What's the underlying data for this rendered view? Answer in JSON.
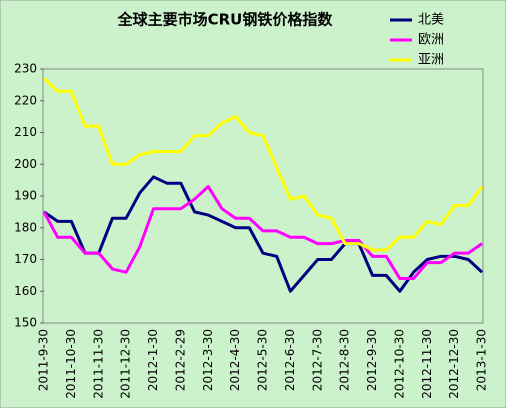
{
  "chart_data": {
    "type": "line",
    "title": "全球主要市场CRU钢铁价格指数",
    "categories": [
      "2011-9-30",
      null,
      "2011-10-30",
      null,
      "2011-11-30",
      null,
      "2011-12-30",
      null,
      "2012-1-30",
      null,
      "2012-2-29",
      null,
      "2012-3-30",
      null,
      "2012-4-30",
      null,
      "2012-5-30",
      null,
      "2012-6-30",
      null,
      "2012-7-30",
      null,
      "2012-8-30",
      null,
      "2012-9-30",
      null,
      "2012-10-30",
      null,
      "2012-11-30",
      null,
      "2012-12-30",
      null,
      "2013-1-30"
    ],
    "series": [
      {
        "name": "北美",
        "color": "#000080",
        "values": [
          185,
          182,
          182,
          172,
          172,
          183,
          183,
          191,
          196,
          194,
          194,
          185,
          184,
          182,
          180,
          180,
          172,
          171,
          160,
          165,
          170,
          170,
          175,
          175,
          165,
          165,
          160,
          166,
          170,
          171,
          171,
          170,
          166
        ]
      },
      {
        "name": "欧洲",
        "color": "#ff00ff",
        "values": [
          185,
          177,
          177,
          172,
          172,
          167,
          166,
          174,
          186,
          186,
          186,
          189,
          193,
          186,
          183,
          183,
          179,
          179,
          177,
          177,
          175,
          175,
          176,
          176,
          171,
          171,
          164,
          164,
          169,
          169,
          172,
          172,
          175
        ]
      },
      {
        "name": "亚洲",
        "color": "#ffff00",
        "values": [
          227,
          223,
          223,
          212,
          212,
          200,
          200,
          203,
          204,
          204,
          204,
          209,
          209,
          213,
          215,
          210,
          209,
          199,
          189,
          190,
          184,
          183,
          175,
          175,
          173,
          173,
          177,
          177,
          182,
          181,
          187,
          187,
          193
        ]
      }
    ],
    "ylim": [
      150,
      230
    ],
    "yticks": [
      150,
      160,
      170,
      180,
      190,
      200,
      210,
      220,
      230
    ],
    "legend": "upper right"
  }
}
